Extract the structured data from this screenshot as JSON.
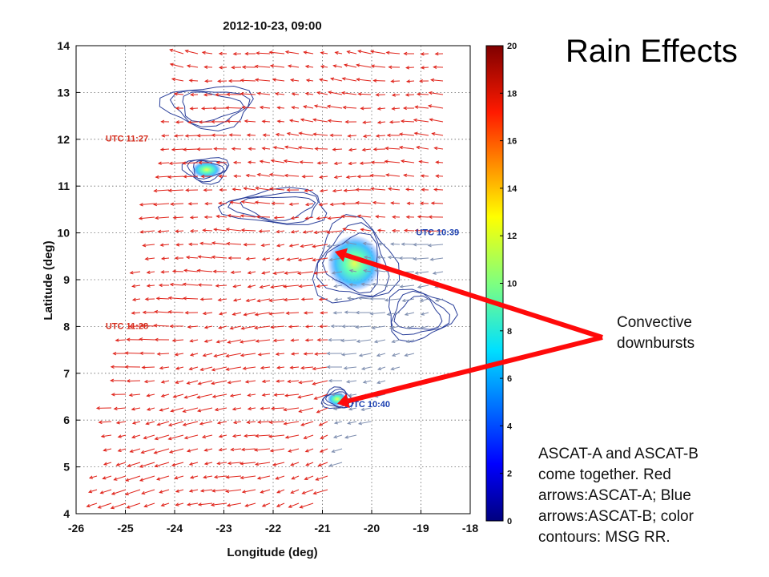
{
  "slide": {
    "title": "Rain Effects",
    "callout_lines": [
      "Convective",
      "downbursts"
    ],
    "caption_lines": [
      "ASCAT-A and ASCAT-B",
      "come together. Red",
      "arrows:ASCAT-A; Blue",
      "arrows:ASCAT-B; color",
      "contours: MSG RR."
    ]
  },
  "chart_data": {
    "type": "quiver",
    "title": "2012-10-23, 09:00",
    "xlabel": "Longitude (deg)",
    "ylabel": "Latitude (deg)",
    "xlim": [
      -26,
      -18
    ],
    "ylim": [
      4,
      14
    ],
    "xticks": [
      -26,
      -25,
      -24,
      -23,
      -22,
      -21,
      -20,
      -19,
      -18
    ],
    "yticks": [
      4,
      5,
      6,
      7,
      8,
      9,
      10,
      11,
      12,
      13,
      14
    ],
    "grid": true,
    "colorbar": {
      "min": 0,
      "max": 20,
      "ticks": [
        0,
        2,
        4,
        6,
        8,
        10,
        12,
        14,
        16,
        18,
        20
      ],
      "colormap": "jet"
    },
    "series": [
      {
        "name": "ASCAT-A",
        "color": "#e0231a"
      },
      {
        "name": "ASCAT-B",
        "color": "#7f8fb0"
      }
    ],
    "annotations": [
      {
        "text": "UTC 11:27",
        "x": -25.4,
        "y": 11.95,
        "color": "#d42a1a"
      },
      {
        "text": "UTC 11:28",
        "x": -25.4,
        "y": 7.95,
        "color": "#d42a1a"
      },
      {
        "text": "UTC 10:39",
        "x": -19.1,
        "y": 9.95,
        "color": "#1a3fb0"
      },
      {
        "text": "UTC 10:40",
        "x": -20.5,
        "y": 6.28,
        "color": "#1a3fb0"
      }
    ],
    "rain_cells": [
      {
        "x": -20.35,
        "y": 9.35,
        "rx": 0.55,
        "ry": 0.6,
        "peak": 12
      },
      {
        "x": -20.7,
        "y": 6.45,
        "rx": 0.2,
        "ry": 0.15,
        "peak": 6
      },
      {
        "x": -23.35,
        "y": 11.35,
        "rx": 0.3,
        "ry": 0.18,
        "peak": 7
      },
      {
        "x": -21.9,
        "y": 10.55,
        "rx": 0.7,
        "ry": 0.25,
        "peak": 2
      },
      {
        "x": -23.3,
        "y": 12.7,
        "rx": 0.6,
        "ry": 0.3,
        "peak": 1
      },
      {
        "x": -19.05,
        "y": 8.25,
        "rx": 0.45,
        "ry": 0.35,
        "peak": 1
      }
    ],
    "downburst_targets": [
      {
        "x": -20.75,
        "y": 9.6
      },
      {
        "x": -20.7,
        "y": 6.35
      }
    ]
  }
}
